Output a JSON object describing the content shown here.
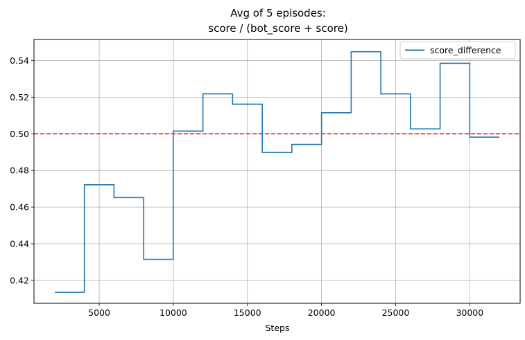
{
  "chart_data": {
    "type": "line",
    "drawstyle": "steps-post",
    "title": [
      "Avg of 5 episodes:",
      "score / (bot_score + score)"
    ],
    "xlabel": "Steps",
    "ylabel": "",
    "xlim": [
      600,
      33400
    ],
    "ylim": [
      0.4075,
      0.5515
    ],
    "xticks": [
      5000,
      10000,
      15000,
      20000,
      25000,
      30000
    ],
    "yticks": [
      0.42,
      0.44,
      0.46,
      0.48,
      0.5,
      0.52,
      0.54
    ],
    "ytick_labels": [
      "0.42",
      "0.44",
      "0.46",
      "0.48",
      "0.50",
      "0.52",
      "0.54"
    ],
    "grid": true,
    "legend_position": "top-right",
    "series": [
      {
        "name": "score_difference",
        "color": "#1f77b4",
        "x": [
          2000,
          4000,
          6000,
          8000,
          10000,
          12000,
          14000,
          16000,
          18000,
          20000,
          22000,
          24000,
          26000,
          28000,
          30000,
          32000
        ],
        "y": [
          0.4135,
          0.4722,
          0.4652,
          0.4315,
          0.5015,
          0.5218,
          0.5162,
          0.4898,
          0.4942,
          0.5115,
          0.5448,
          0.5218,
          0.5027,
          0.5385,
          0.4982,
          0.4982
        ]
      }
    ],
    "reference_line": {
      "y": 0.5,
      "color": "#ff0000",
      "style": "dashed"
    }
  }
}
